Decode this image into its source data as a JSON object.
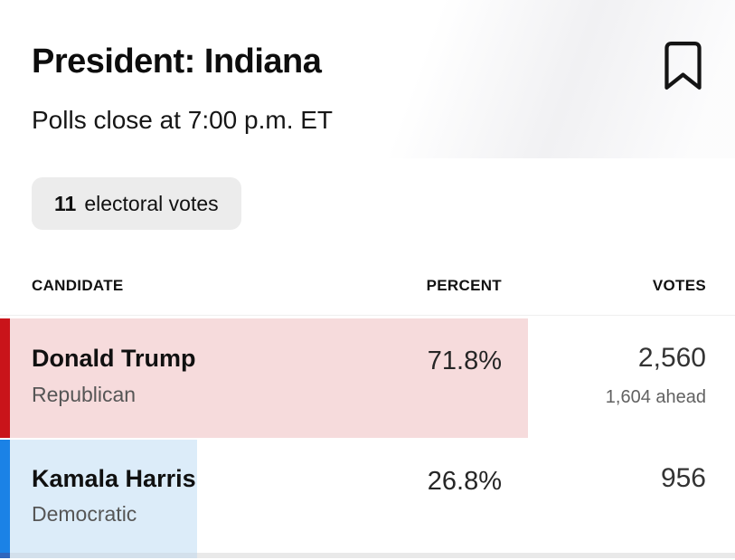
{
  "header": {
    "title": "President: Indiana",
    "subtitle": "Polls close at 7:00 p.m. ET",
    "electoral_votes": {
      "count": "11",
      "label": "electoral votes"
    },
    "icons": {
      "bookmark": "bookmark-outline-icon"
    }
  },
  "table": {
    "columns": [
      "Candidate",
      "Percent",
      "Votes"
    ],
    "rows": [
      {
        "candidate": "Donald Trump",
        "party": "Republican",
        "percent": "71.8%",
        "percent_value": 71.8,
        "votes": "2,560",
        "margin_note": "1,604 ahead",
        "accent_color": "#c9141a",
        "fill_color": "#f6dbdc"
      },
      {
        "candidate": "Kamala Harris",
        "party": "Democratic",
        "percent": "26.8%",
        "percent_value": 26.8,
        "votes": "956",
        "margin_note": "",
        "accent_color": "#1b82e6",
        "fill_color": "#dcecf9"
      }
    ]
  },
  "colors": {
    "republican_accent": "#c9141a",
    "republican_fill": "#f6dbdc",
    "democrat_accent": "#1b82e6",
    "democrat_fill": "#dcecf9",
    "badge_background": "#ececec"
  }
}
